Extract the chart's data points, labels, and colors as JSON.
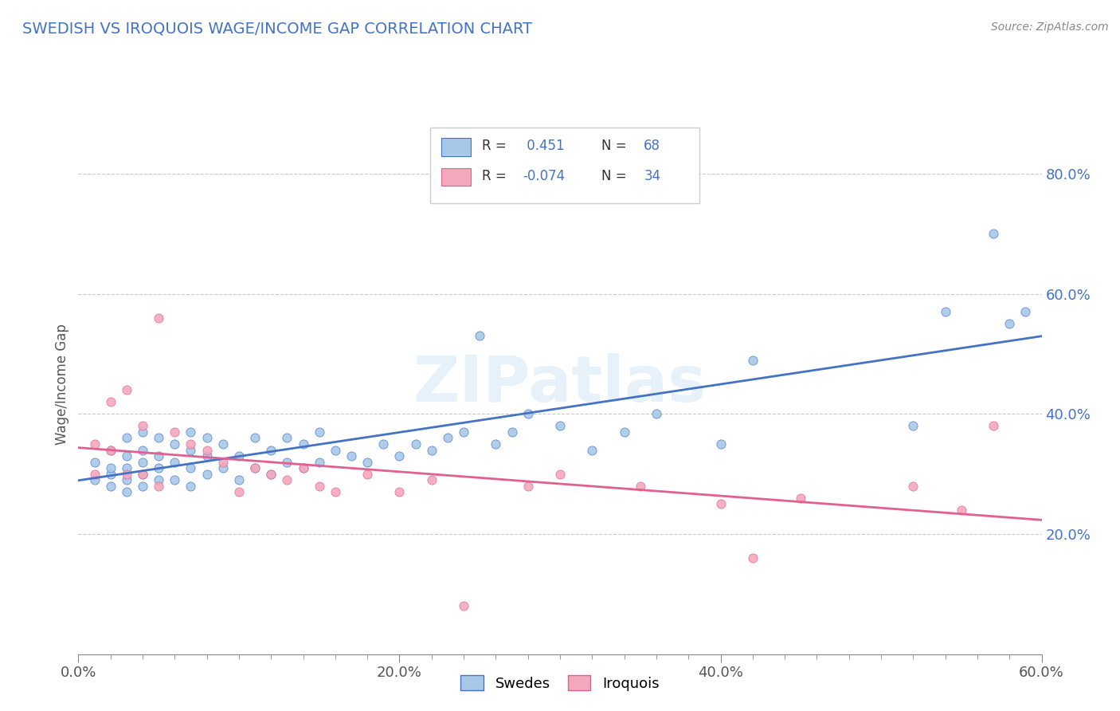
{
  "title": "SWEDISH VS IROQUOIS WAGE/INCOME GAP CORRELATION CHART",
  "source": "Source: ZipAtlas.com",
  "ylabel": "Wage/Income Gap",
  "xlim": [
    0.0,
    0.6
  ],
  "ylim": [
    0.0,
    0.9
  ],
  "ytick_labels": [
    "20.0%",
    "40.0%",
    "60.0%",
    "80.0%"
  ],
  "ytick_values": [
    0.2,
    0.4,
    0.6,
    0.8
  ],
  "xtick_major_values": [
    0.0,
    0.2,
    0.4,
    0.6
  ],
  "xtick_major_labels": [
    "0.0%",
    "20.0%",
    "40.0%",
    "60.0%"
  ],
  "swedes_color": "#A8C8E8",
  "iroquois_color": "#F4A8BC",
  "swedes_line_color": "#4472C4",
  "iroquois_line_color": "#E06090",
  "background_color": "#FFFFFF",
  "grid_color": "#BBBBBB",
  "title_color": "#4472C4",
  "legend_r_swedes": "0.451",
  "legend_n_swedes": "68",
  "legend_r_iroquois": "-0.074",
  "legend_n_iroquois": "34",
  "watermark": "ZIPatlas",
  "swedes_scatter_x": [
    0.01,
    0.01,
    0.02,
    0.02,
    0.02,
    0.02,
    0.03,
    0.03,
    0.03,
    0.03,
    0.03,
    0.04,
    0.04,
    0.04,
    0.04,
    0.04,
    0.05,
    0.05,
    0.05,
    0.05,
    0.06,
    0.06,
    0.06,
    0.07,
    0.07,
    0.07,
    0.07,
    0.08,
    0.08,
    0.08,
    0.09,
    0.09,
    0.1,
    0.1,
    0.11,
    0.11,
    0.12,
    0.12,
    0.13,
    0.13,
    0.14,
    0.14,
    0.15,
    0.15,
    0.16,
    0.17,
    0.18,
    0.19,
    0.2,
    0.21,
    0.22,
    0.23,
    0.24,
    0.25,
    0.26,
    0.27,
    0.28,
    0.3,
    0.32,
    0.34,
    0.36,
    0.4,
    0.42,
    0.52,
    0.54,
    0.57,
    0.58,
    0.59
  ],
  "swedes_scatter_y": [
    0.29,
    0.32,
    0.28,
    0.3,
    0.31,
    0.34,
    0.27,
    0.29,
    0.31,
    0.33,
    0.36,
    0.28,
    0.3,
    0.32,
    0.34,
    0.37,
    0.29,
    0.31,
    0.33,
    0.36,
    0.29,
    0.32,
    0.35,
    0.28,
    0.31,
    0.34,
    0.37,
    0.3,
    0.33,
    0.36,
    0.31,
    0.35,
    0.29,
    0.33,
    0.31,
    0.36,
    0.3,
    0.34,
    0.32,
    0.36,
    0.31,
    0.35,
    0.32,
    0.37,
    0.34,
    0.33,
    0.32,
    0.35,
    0.33,
    0.35,
    0.34,
    0.36,
    0.37,
    0.53,
    0.35,
    0.37,
    0.4,
    0.38,
    0.34,
    0.37,
    0.4,
    0.35,
    0.49,
    0.38,
    0.57,
    0.7,
    0.55,
    0.57
  ],
  "iroquois_scatter_x": [
    0.01,
    0.01,
    0.02,
    0.02,
    0.03,
    0.03,
    0.04,
    0.04,
    0.05,
    0.05,
    0.06,
    0.07,
    0.08,
    0.09,
    0.1,
    0.11,
    0.12,
    0.13,
    0.14,
    0.15,
    0.16,
    0.18,
    0.2,
    0.22,
    0.24,
    0.28,
    0.3,
    0.35,
    0.4,
    0.42,
    0.45,
    0.52,
    0.55,
    0.57
  ],
  "iroquois_scatter_y": [
    0.3,
    0.35,
    0.34,
    0.42,
    0.3,
    0.44,
    0.3,
    0.38,
    0.28,
    0.56,
    0.37,
    0.35,
    0.34,
    0.32,
    0.27,
    0.31,
    0.3,
    0.29,
    0.31,
    0.28,
    0.27,
    0.3,
    0.27,
    0.29,
    0.08,
    0.28,
    0.3,
    0.28,
    0.25,
    0.16,
    0.26,
    0.28,
    0.24,
    0.38
  ]
}
